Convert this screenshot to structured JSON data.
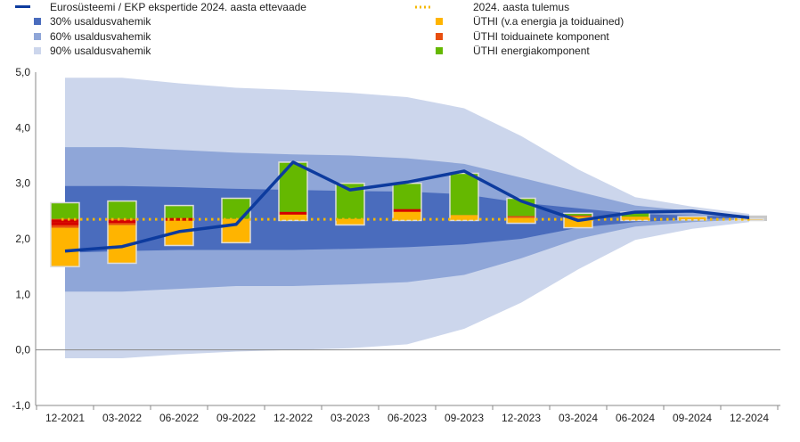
{
  "chart_data": {
    "type": "area",
    "categories": [
      "12-2021",
      "03-2022",
      "06-2022",
      "09-2022",
      "12-2022",
      "03-2023",
      "06-2023",
      "09-2023",
      "12-2023",
      "03-2024",
      "06-2024",
      "09-2024",
      "12-2024"
    ],
    "ylim": [
      -1.0,
      5.0
    ],
    "y_ticks": [
      "-1,0",
      "0,0",
      "1,0",
      "2,0",
      "3,0",
      "4,0",
      "5,0"
    ],
    "y_tick_values": [
      -1,
      0,
      1,
      2,
      3,
      4,
      5
    ],
    "legend": {
      "line": "Eurosüsteemi / EKP ekspertide 2024. aasta ettevaade",
      "band30": "30% usaldusvahemik",
      "band60": "60% usaldusvahemik",
      "band90": "90% usaldusvahemik",
      "target": "2024. aasta tulemus",
      "core": "ÜTHI (v.a energia ja toiduained)",
      "food": "ÜTHI toiduainete komponent",
      "energy": "ÜTHI energiakomponent"
    },
    "colors": {
      "line": "#0d3b9e",
      "band30": "#4a6cbd",
      "band60": "#8fa6d8",
      "band90": "#ccd6ec",
      "target": "#f5b800",
      "core": "#ffb400",
      "food": "#e84e0f",
      "energy": "#65b800",
      "food_edge": "#d40000"
    },
    "bands": {
      "90_lower": [
        -0.15,
        -0.15,
        -0.08,
        -0.03,
        0.0,
        0.03,
        0.1,
        0.38,
        0.85,
        1.45,
        1.98,
        2.18,
        2.3
      ],
      "90_upper": [
        4.9,
        4.9,
        4.8,
        4.72,
        4.68,
        4.63,
        4.55,
        4.35,
        3.85,
        3.25,
        2.75,
        2.58,
        2.45
      ],
      "60_lower": [
        1.05,
        1.05,
        1.1,
        1.15,
        1.15,
        1.18,
        1.22,
        1.35,
        1.65,
        2.0,
        2.22,
        2.3,
        2.35
      ],
      "60_upper": [
        3.65,
        3.65,
        3.6,
        3.55,
        3.52,
        3.5,
        3.45,
        3.35,
        3.1,
        2.85,
        2.6,
        2.5,
        2.42
      ],
      "30_lower": [
        1.75,
        1.78,
        1.8,
        1.8,
        1.8,
        1.82,
        1.85,
        1.9,
        2.0,
        2.2,
        2.3,
        2.35,
        2.38
      ],
      "30_upper": [
        2.95,
        2.95,
        2.93,
        2.9,
        2.88,
        2.86,
        2.85,
        2.8,
        2.65,
        2.55,
        2.45,
        2.42,
        2.4
      ]
    },
    "projection": [
      1.78,
      1.86,
      2.13,
      2.26,
      3.38,
      2.88,
      3.02,
      3.22,
      2.68,
      2.33,
      2.48,
      2.5,
      2.38
    ],
    "target_value": 2.35,
    "bars": [
      {
        "core": [
          1.5,
          2.2
        ],
        "food": [
          2.2,
          2.36
        ],
        "energy": [
          2.36,
          2.65
        ],
        "food_lines": [
          2.27,
          2.32
        ]
      },
      {
        "core": [
          1.56,
          2.25
        ],
        "food": [
          2.25,
          2.36
        ],
        "energy": [
          2.36,
          2.68
        ],
        "food_lines": [
          2.31
        ]
      },
      {
        "core": [
          1.88,
          2.33
        ],
        "food": [
          2.33,
          2.36
        ],
        "energy": [
          2.36,
          2.6
        ],
        "food_lines": [
          2.35
        ]
      },
      {
        "core": [
          1.93,
          2.36
        ],
        "food": null,
        "energy": [
          2.36,
          2.73
        ],
        "food_lines": []
      },
      {
        "core": [
          2.33,
          2.45
        ],
        "food": [
          2.45,
          2.48
        ],
        "energy": [
          2.48,
          3.38
        ],
        "food_lines": [
          2.46
        ]
      },
      {
        "core": [
          2.25,
          2.36
        ],
        "food": null,
        "energy": [
          2.36,
          3.0
        ],
        "food_lines": []
      },
      {
        "core": [
          2.33,
          2.5
        ],
        "food": [
          2.5,
          2.53
        ],
        "energy": [
          2.53,
          3.0
        ],
        "food_lines": [
          2.51
        ]
      },
      {
        "core": [
          2.33,
          2.43
        ],
        "food": null,
        "energy": [
          2.43,
          3.18
        ],
        "food_lines": []
      },
      {
        "core": [
          2.28,
          2.38
        ],
        "food": [
          2.38,
          2.41
        ],
        "energy": [
          2.41,
          2.73
        ],
        "food_lines": []
      },
      {
        "core": [
          2.2,
          2.4
        ],
        "food": [
          2.4,
          2.42
        ],
        "energy": [
          2.42,
          2.46
        ],
        "food_lines": []
      },
      {
        "core": [
          2.33,
          2.4
        ],
        "food": null,
        "energy": [
          2.4,
          2.48
        ],
        "food_lines": []
      },
      {
        "core": [
          2.34,
          2.4
        ],
        "food": null,
        "energy": null,
        "food_lines": []
      },
      {
        "core": [
          2.33,
          2.36
        ],
        "food": null,
        "energy": null,
        "food_lines": []
      }
    ]
  }
}
